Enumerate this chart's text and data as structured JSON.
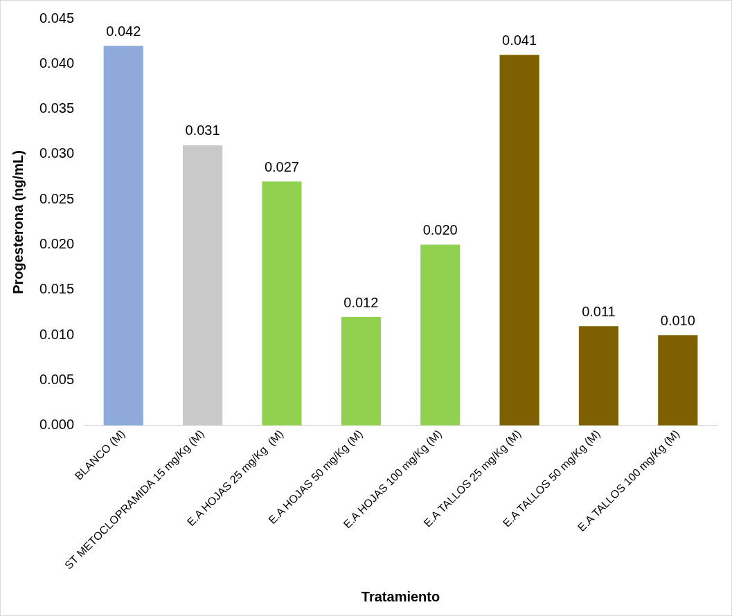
{
  "chart_data": {
    "type": "bar",
    "xlabel": "Tratamiento",
    "ylabel": "Progesterona (ng/mL)",
    "categories": [
      "BLANCO (M)",
      "ST METOCLOPRAMIDA 15 mg/Kg (M)",
      "E.A HOJAS 25 mg/Kg  (M)",
      "E.A HOJAS 50 mg/Kg (M)",
      "E.A HOJAS 100 mg/Kg (M)",
      "E.A TALLOS 25 mg/Kg (M)",
      "E.A TALLOS 50 mg/Kg (M)",
      "E.A TALLOS 100 mg/Kg (M)"
    ],
    "values": [
      0.042,
      0.031,
      0.027,
      0.012,
      0.02,
      0.041,
      0.011,
      0.01
    ],
    "colors": [
      "#8eaadb",
      "#c9c9c9",
      "#92d050",
      "#92d050",
      "#92d050",
      "#7f6000",
      "#7f6000",
      "#7f6000"
    ],
    "value_labels": [
      "0.042",
      "0.031",
      "0.027",
      "0.012",
      "0.020",
      "0.041",
      "0.011",
      "0.010"
    ],
    "ylim": [
      0,
      0.045
    ],
    "yticks": [
      {
        "value": 0,
        "label": "0.000"
      },
      0.005,
      {
        "value": 0.01,
        "label": "0.010"
      },
      0.015,
      {
        "value": 0.02,
        "label": "0.020"
      },
      0.025,
      {
        "value": 0.03,
        "label": "0.030"
      },
      0.035,
      {
        "value": 0.04,
        "label": "0.040"
      },
      0.045
    ],
    "grid": false,
    "legend": false
  }
}
